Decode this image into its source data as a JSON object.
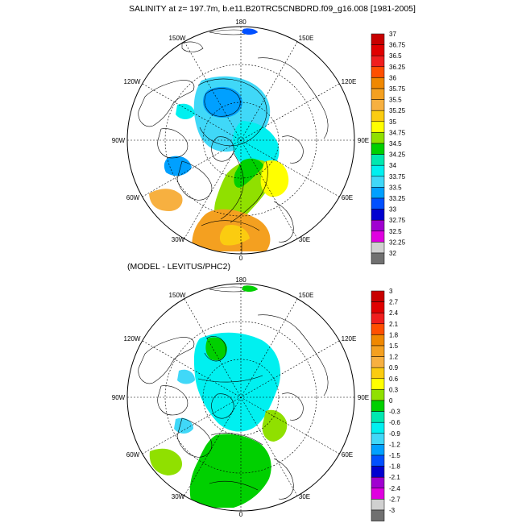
{
  "top_panel": {
    "title": "SALINITY at z= 197.7m, b.e11.B20TRC5CNBDRD.f09_g16.008 [1981-2005]",
    "lon_labels": {
      "n180": "180",
      "w150": "150W",
      "e150": "150E",
      "w120": "120W",
      "e120": "120E",
      "w90": "90W",
      "e90": "90E",
      "w60": "60W",
      "e60": "60E",
      "w30": "30W",
      "e30": "30E",
      "s0": "0"
    },
    "colorbar": {
      "labels": [
        "37",
        "36.75",
        "36.5",
        "36.25",
        "36",
        "35.75",
        "35.5",
        "35.25",
        "35",
        "34.75",
        "34.5",
        "34.25",
        "34",
        "33.75",
        "33.5",
        "33.25",
        "33",
        "32.75",
        "32.5",
        "32.25",
        "32"
      ],
      "colors": [
        "#c80000",
        "#e00000",
        "#f01e1e",
        "#ff4f00",
        "#f08800",
        "#f4a020",
        "#f7b040",
        "#fbcc10",
        "#ffff00",
        "#90e000",
        "#00d000",
        "#00e8b0",
        "#00f0f0",
        "#40d8f8",
        "#00a0ff",
        "#0050ff",
        "#0000d0",
        "#a000d0",
        "#e000e0",
        "#d0d0d0",
        "#707070"
      ]
    }
  },
  "bottom_panel": {
    "title": "(MODEL - LEVITUS/PHC2)",
    "lon_labels": {
      "n180": "180",
      "w150": "150W",
      "e150": "150E",
      "w120": "120W",
      "e120": "120E",
      "w90": "90W",
      "e90": "90E",
      "w60": "60W",
      "e60": "60E",
      "w30": "30W",
      "e30": "30E",
      "s0": "0"
    },
    "colorbar": {
      "labels": [
        "3",
        "2.7",
        "2.4",
        "2.1",
        "1.8",
        "1.5",
        "1.2",
        "0.9",
        "0.6",
        "0.3",
        "0",
        "-0.3",
        "-0.6",
        "-0.9",
        "-1.2",
        "-1.5",
        "-1.8",
        "-2.1",
        "-2.4",
        "-2.7",
        "-3"
      ],
      "colors": [
        "#c80000",
        "#e00000",
        "#f01e1e",
        "#ff4f00",
        "#f08800",
        "#f4a020",
        "#f7b040",
        "#fbcc10",
        "#ffff00",
        "#90e000",
        "#00d000",
        "#00e8b0",
        "#00f0f0",
        "#40d8f8",
        "#00a0ff",
        "#0050ff",
        "#0000d0",
        "#a000d0",
        "#e000e0",
        "#d0d0d0",
        "#707070"
      ]
    }
  }
}
